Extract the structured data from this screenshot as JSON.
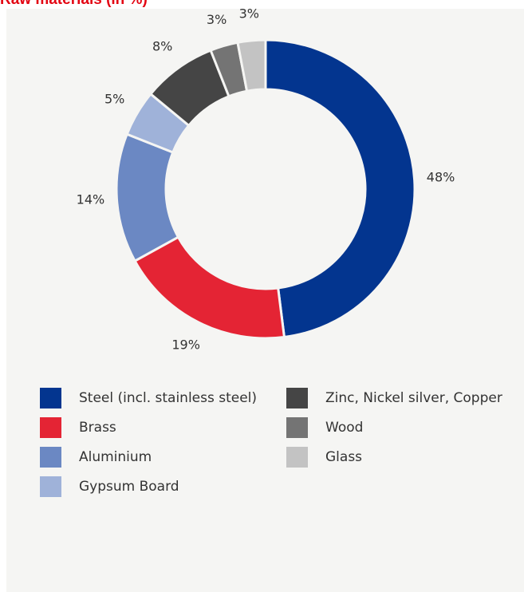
{
  "title": "Raw materials (in %)",
  "chart_data": {
    "type": "pie",
    "style": "donut",
    "slices": [
      {
        "label": "Steel (incl. stainless steel)",
        "value": 48,
        "value_label": "48%",
        "color": "#03358f"
      },
      {
        "label": "Brass",
        "value": 19,
        "value_label": "19%",
        "color": "#e42434"
      },
      {
        "label": "Aluminium",
        "value": 14,
        "value_label": "14%",
        "color": "#6b88c3"
      },
      {
        "label": "Gypsum Board",
        "value": 5,
        "value_label": "5%",
        "color": "#9fb2d9"
      },
      {
        "label": "Zinc, Nickel silver, Copper",
        "value": 8,
        "value_label": "8%",
        "color": "#454545"
      },
      {
        "label": "Wood",
        "value": 3,
        "value_label": "3%",
        "color": "#747474"
      },
      {
        "label": "Glass",
        "value": 3,
        "value_label": "3%",
        "color": "#c3c3c3"
      }
    ],
    "legend_placement": "bottom"
  }
}
